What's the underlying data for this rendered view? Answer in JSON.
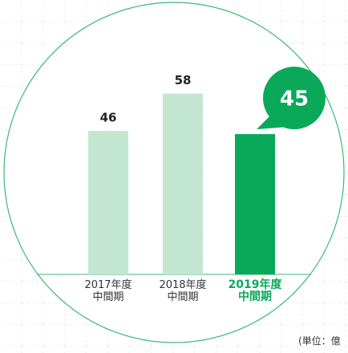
{
  "chart_data": {
    "type": "bar",
    "categories": [
      "2017年度\n中間期",
      "2018年度\n中間期",
      "2019年度\n中間期"
    ],
    "values": [
      46,
      58,
      45
    ],
    "colors": [
      "#c3e6d2",
      "#c3e6d2",
      "#0aa95a"
    ],
    "ylim": [
      0,
      88
    ],
    "unit_label": "(単位：億"
  }
}
